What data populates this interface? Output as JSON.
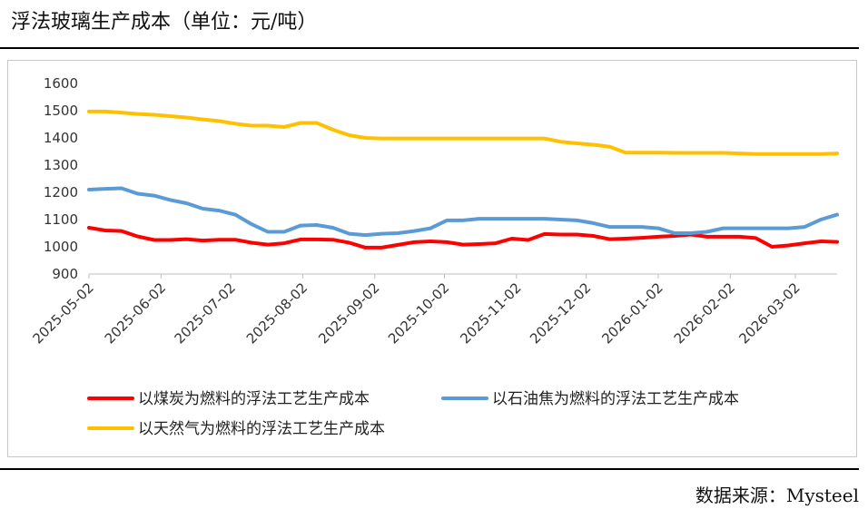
{
  "title": "浮法玻璃生产成本（单位：元/吨）",
  "source": "数据来源：Mysteel",
  "chart_data": {
    "type": "line",
    "title": "浮法玻璃生产成本（单位：元/吨）",
    "xlabel": "",
    "ylabel": "",
    "ylim": [
      900,
      1600
    ],
    "yticks": [
      900,
      1000,
      1100,
      1200,
      1300,
      1400,
      1500,
      1600
    ],
    "grid": false,
    "legend_position": "bottom",
    "x_ticks": [
      "2025-05-02",
      "2025-06-02",
      "2025-07-02",
      "2025-08-02",
      "2025-09-02",
      "2025-10-02",
      "2025-11-02",
      "2025-12-02",
      "2026-01-02",
      "2026-02-02",
      "2026-03-02"
    ],
    "x_range": [
      "2025-05-02",
      "2026-03-20"
    ],
    "x": [
      "2025-05-02",
      "2025-05-09",
      "2025-05-16",
      "2025-05-23",
      "2025-05-30",
      "2025-06-06",
      "2025-06-13",
      "2025-06-20",
      "2025-06-27",
      "2025-07-04",
      "2025-07-11",
      "2025-07-18",
      "2025-07-25",
      "2025-08-01",
      "2025-08-08",
      "2025-08-15",
      "2025-08-22",
      "2025-08-29",
      "2025-09-05",
      "2025-09-12",
      "2025-09-19",
      "2025-09-26",
      "2025-10-03",
      "2025-10-10",
      "2025-10-17",
      "2025-10-24",
      "2025-10-31",
      "2025-11-07",
      "2025-11-14",
      "2025-11-21",
      "2025-11-28",
      "2025-12-05",
      "2025-12-12",
      "2025-12-19",
      "2025-12-26",
      "2026-01-02",
      "2026-01-09",
      "2026-01-16",
      "2026-01-23",
      "2026-01-30",
      "2026-02-06",
      "2026-02-13",
      "2026-02-20",
      "2026-02-27",
      "2026-03-06",
      "2026-03-13",
      "2026-03-20"
    ],
    "series": [
      {
        "name": "以煤炭为燃料的浮法工艺生产成本",
        "color": "#ff0000",
        "values": [
          1070,
          1060,
          1058,
          1038,
          1025,
          1025,
          1028,
          1023,
          1026,
          1026,
          1015,
          1008,
          1013,
          1027,
          1027,
          1026,
          1015,
          997,
          997,
          1007,
          1017,
          1020,
          1017,
          1008,
          1010,
          1013,
          1030,
          1025,
          1047,
          1045,
          1045,
          1040,
          1028,
          1030,
          1033,
          1037,
          1040,
          1045,
          1037,
          1037,
          1037,
          1032,
          1000,
          1005,
          1013,
          1020,
          1018
        ]
      },
      {
        "name": "以石油焦为燃料的浮法工艺生产成本",
        "color": "#5b9bd5",
        "values": [
          1210,
          1213,
          1215,
          1195,
          1188,
          1172,
          1160,
          1140,
          1133,
          1118,
          1083,
          1055,
          1055,
          1078,
          1080,
          1070,
          1048,
          1043,
          1048,
          1050,
          1058,
          1068,
          1097,
          1097,
          1103,
          1103,
          1103,
          1103,
          1103,
          1100,
          1097,
          1087,
          1073,
          1073,
          1073,
          1068,
          1050,
          1050,
          1055,
          1068,
          1068,
          1068,
          1068,
          1068,
          1073,
          1100,
          1118
        ]
      },
      {
        "name": "以天然气为燃料的浮法工艺生产成本",
        "color": "#ffc000",
        "values": [
          1497,
          1497,
          1493,
          1488,
          1485,
          1480,
          1475,
          1468,
          1462,
          1452,
          1445,
          1445,
          1440,
          1455,
          1455,
          1430,
          1410,
          1400,
          1398,
          1398,
          1398,
          1398,
          1398,
          1398,
          1398,
          1398,
          1398,
          1398,
          1398,
          1386,
          1380,
          1375,
          1368,
          1346,
          1346,
          1346,
          1345,
          1345,
          1345,
          1345,
          1343,
          1341,
          1341,
          1341,
          1341,
          1341,
          1343
        ]
      }
    ]
  }
}
